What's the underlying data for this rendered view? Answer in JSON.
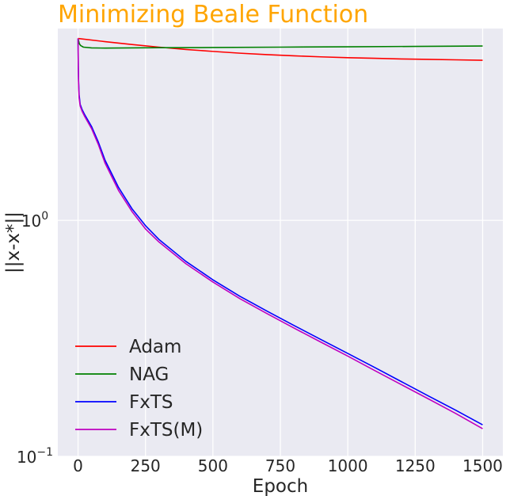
{
  "chart_data": {
    "type": "line",
    "title": "Minimizing Beale Function",
    "xlabel": "Epoch",
    "ylabel": "||x-x*||",
    "yscale": "log",
    "xlim": [
      -75,
      1575
    ],
    "ylim": [
      0.1,
      6.5
    ],
    "x_ticks": [
      0,
      250,
      500,
      750,
      1000,
      1250,
      1500
    ],
    "y_ticks": [
      {
        "value": 1,
        "base": "10",
        "exp": "0"
      },
      {
        "value": 0.1,
        "base": "10",
        "exp": "−1"
      }
    ],
    "grid": true,
    "legend_position": "lower-left",
    "series": [
      {
        "name": "Adam",
        "color": "#ff0000",
        "x": [
          0,
          100,
          200,
          300,
          400,
          500,
          600,
          700,
          800,
          900,
          1000,
          1100,
          1200,
          1300,
          1400,
          1500
        ],
        "y": [
          5.9,
          5.72,
          5.56,
          5.42,
          5.3,
          5.2,
          5.11,
          5.04,
          4.98,
          4.93,
          4.89,
          4.86,
          4.83,
          4.81,
          4.79,
          4.77
        ]
      },
      {
        "name": "NAG",
        "color": "#008000",
        "x": [
          0,
          5,
          10,
          20,
          50,
          100,
          200,
          300,
          500,
          750,
          1000,
          1250,
          1500
        ],
        "y": [
          5.9,
          5.6,
          5.5,
          5.42,
          5.38,
          5.37,
          5.38,
          5.39,
          5.4,
          5.42,
          5.44,
          5.46,
          5.48
        ]
      },
      {
        "name": "FxTS",
        "color": "#0000ff",
        "x": [
          0,
          1,
          2,
          4,
          8,
          15,
          25,
          50,
          75,
          100,
          150,
          200,
          250,
          300,
          400,
          500,
          600,
          700,
          800,
          900,
          1000,
          1100,
          1200,
          1300,
          1400,
          1500
        ],
        "y": [
          5.9,
          4.5,
          3.9,
          3.4,
          3.1,
          2.95,
          2.8,
          2.5,
          2.15,
          1.8,
          1.38,
          1.12,
          0.95,
          0.83,
          0.67,
          0.56,
          0.477,
          0.413,
          0.359,
          0.313,
          0.273,
          0.238,
          0.207,
          0.18,
          0.157,
          0.136
        ]
      },
      {
        "name": "FxTS(M)",
        "color": "#bf00bf",
        "x": [
          0,
          1,
          2,
          4,
          8,
          15,
          25,
          50,
          75,
          100,
          150,
          200,
          250,
          300,
          400,
          500,
          600,
          700,
          800,
          900,
          1000,
          1100,
          1200,
          1300,
          1400,
          1500
        ],
        "y": [
          5.9,
          4.4,
          3.8,
          3.3,
          3.05,
          2.9,
          2.75,
          2.45,
          2.1,
          1.75,
          1.34,
          1.09,
          0.92,
          0.81,
          0.655,
          0.548,
          0.466,
          0.403,
          0.35,
          0.305,
          0.266,
          0.231,
          0.201,
          0.175,
          0.152,
          0.131
        ]
      }
    ]
  }
}
